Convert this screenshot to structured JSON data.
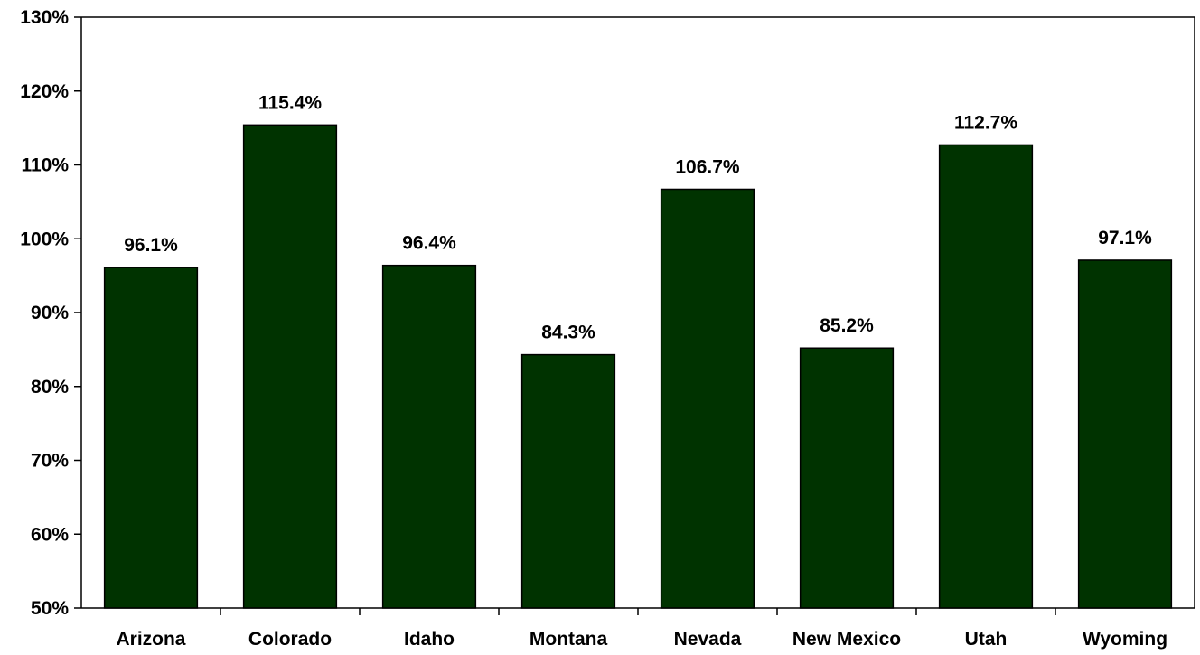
{
  "chart_data": {
    "type": "bar",
    "categories": [
      "Arizona",
      "Colorado",
      "Idaho",
      "Montana",
      "Nevada",
      "New Mexico",
      "Utah",
      "Wyoming"
    ],
    "values": [
      96.1,
      115.4,
      96.4,
      84.3,
      106.7,
      85.2,
      112.7,
      97.1
    ],
    "data_labels": [
      "96.1%",
      "115.4%",
      "96.4%",
      "84.3%",
      "106.7%",
      "85.2%",
      "112.7%",
      "97.1%"
    ],
    "ylim": [
      50,
      130
    ],
    "yticks": [
      50,
      60,
      70,
      80,
      90,
      100,
      110,
      120,
      130
    ],
    "ytick_labels": [
      "50%",
      "60%",
      "70%",
      "80%",
      "90%",
      "100%",
      "110%",
      "120%",
      "130%"
    ],
    "title": "",
    "xlabel": "",
    "ylabel": "",
    "grid": false,
    "legend": "none",
    "bar_color": "#003300"
  }
}
